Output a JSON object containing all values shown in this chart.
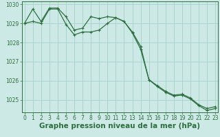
{
  "title": "Graphe pression niveau de la mer (hPa)",
  "background_color": "#cce9e5",
  "grid_color": "#aad4cf",
  "line_color": "#2d6e3e",
  "marker_color": "#2d6e3e",
  "series1": {
    "x": [
      0,
      1,
      2,
      3,
      4,
      5,
      6,
      7,
      8,
      9,
      10,
      11,
      12,
      13,
      14,
      15,
      16,
      17,
      18,
      19,
      20,
      21,
      22,
      23
    ],
    "y": [
      1029.0,
      1029.75,
      1029.1,
      1029.8,
      1029.8,
      1029.35,
      1028.65,
      1028.75,
      1029.35,
      1029.25,
      1029.35,
      1029.3,
      1029.1,
      1028.55,
      1027.8,
      1026.05,
      1025.75,
      1025.45,
      1025.25,
      1025.3,
      1025.1,
      1024.75,
      1024.55,
      1024.65
    ]
  },
  "series2": {
    "x": [
      0,
      1,
      2,
      3,
      4,
      5,
      6,
      7,
      8,
      9,
      10,
      11,
      12,
      13,
      14,
      15,
      16,
      17,
      18,
      19,
      20,
      21,
      22,
      23
    ],
    "y": [
      1029.0,
      1029.1,
      1029.0,
      1029.75,
      1029.75,
      1028.95,
      1028.4,
      1028.55,
      1028.55,
      1028.65,
      1029.0,
      1029.3,
      1029.1,
      1028.5,
      1027.65,
      1026.05,
      1025.7,
      1025.4,
      1025.2,
      1025.25,
      1025.05,
      1024.7,
      1024.45,
      1024.55
    ]
  },
  "ylim": [
    1024.35,
    1030.15
  ],
  "yticks": [
    1025,
    1026,
    1027,
    1028,
    1029,
    1030
  ],
  "xlim": [
    -0.3,
    23.3
  ],
  "xticks": [
    0,
    1,
    2,
    3,
    4,
    5,
    6,
    7,
    8,
    9,
    10,
    11,
    12,
    13,
    14,
    15,
    16,
    17,
    18,
    19,
    20,
    21,
    22,
    23
  ],
  "tick_fontsize": 5.5,
  "title_fontsize": 7.5,
  "marker_size": 2.5,
  "line_width": 0.9
}
